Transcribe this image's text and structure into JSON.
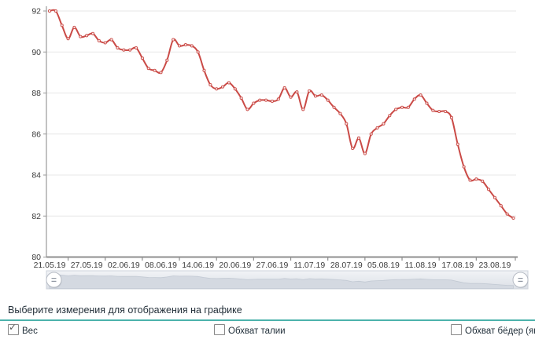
{
  "chart_data": {
    "type": "line",
    "title": "",
    "xlabel": "",
    "ylabel": "",
    "ylim": [
      80,
      92
    ],
    "y_ticks": [
      80,
      82,
      84,
      86,
      88,
      90,
      92
    ],
    "grid": "horizontal",
    "legend": "none",
    "marker": "open-circle",
    "x_tick_labels": [
      "21.05.19",
      "27.05.19",
      "02.06.19",
      "08.06.19",
      "14.06.19",
      "20.06.19",
      "27.06.19",
      "11.07.19",
      "28.07.19",
      "05.08.19",
      "11.08.19",
      "17.08.19",
      "23.08.19"
    ],
    "label_every_n_points": 6,
    "series": [
      {
        "name": "Вес",
        "color": "#ca4a46",
        "values": [
          92.0,
          92.0,
          91.3,
          90.65,
          91.2,
          90.75,
          90.8,
          90.9,
          90.55,
          90.45,
          90.6,
          90.2,
          90.1,
          90.1,
          90.2,
          89.7,
          89.2,
          89.1,
          89.0,
          89.6,
          90.6,
          90.3,
          90.35,
          90.3,
          90.0,
          89.1,
          88.4,
          88.2,
          88.3,
          88.5,
          88.2,
          87.75,
          87.2,
          87.5,
          87.65,
          87.65,
          87.6,
          87.7,
          88.25,
          87.8,
          88.05,
          87.2,
          88.1,
          87.85,
          87.9,
          87.65,
          87.3,
          87.0,
          86.5,
          85.3,
          85.8,
          85.05,
          86.0,
          86.3,
          86.5,
          86.9,
          87.2,
          87.3,
          87.3,
          87.7,
          87.9,
          87.5,
          87.15,
          87.1,
          87.1,
          86.8,
          85.5,
          84.4,
          83.75,
          83.8,
          83.7,
          83.3,
          82.9,
          82.5,
          82.1,
          81.9
        ]
      }
    ],
    "navigator": {
      "present": true,
      "band_color": "#e3e6ec",
      "silhouette_color": "#d4d9e1",
      "grip_style": "round-equals"
    }
  },
  "controls": {
    "heading": "Выберите измерения для отображения на графике",
    "accent_color": "#4cb2ac",
    "check_glyph": "✓",
    "checkboxes": [
      {
        "label": "Вес",
        "checked": true
      },
      {
        "label": "Обхват талии",
        "checked": false
      },
      {
        "label": "Обхват бёдер (ягодицы)",
        "checked": false
      }
    ]
  }
}
